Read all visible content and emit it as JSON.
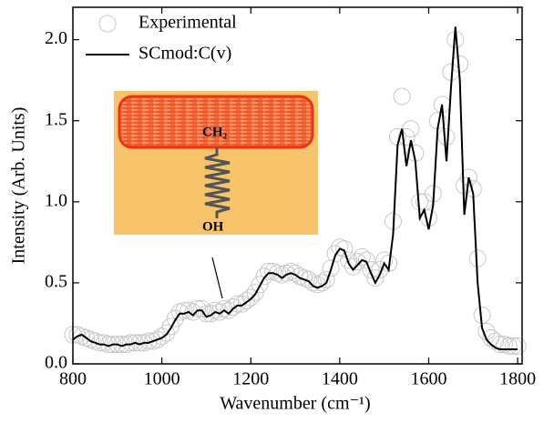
{
  "chart_data": {
    "type": "line",
    "xlabel": "Wavenumber (cm⁻¹)",
    "ylabel": "Intensity (Arb. Units)",
    "xlim": [
      800,
      1810
    ],
    "ylim": [
      0,
      2.2
    ],
    "xticks": [
      800,
      1000,
      1200,
      1400,
      1600,
      1800
    ],
    "yticks": [
      {
        "value": 0,
        "label": "0.0"
      },
      0.5,
      {
        "value": 1,
        "label": "1.0"
      },
      1.5,
      {
        "value": 2,
        "label": "2.0"
      }
    ],
    "legend": "upper left",
    "annotations": [
      "CH₂",
      "OH"
    ],
    "series": [
      {
        "name": "Experimental",
        "style": "markers",
        "color": "#c8c8c8",
        "x": [
          800,
          810,
          820,
          830,
          840,
          850,
          860,
          870,
          880,
          890,
          900,
          910,
          920,
          930,
          940,
          950,
          960,
          970,
          980,
          990,
          1000,
          1010,
          1020,
          1030,
          1040,
          1050,
          1060,
          1070,
          1080,
          1090,
          1100,
          1110,
          1120,
          1130,
          1140,
          1150,
          1160,
          1170,
          1180,
          1190,
          1200,
          1210,
          1220,
          1230,
          1240,
          1250,
          1260,
          1270,
          1280,
          1290,
          1300,
          1310,
          1320,
          1330,
          1340,
          1350,
          1360,
          1370,
          1380,
          1390,
          1400,
          1410,
          1420,
          1430,
          1440,
          1450,
          1460,
          1470,
          1480,
          1490,
          1500,
          1510,
          1520,
          1530,
          1540,
          1550,
          1560,
          1570,
          1580,
          1590,
          1600,
          1610,
          1620,
          1630,
          1640,
          1650,
          1660,
          1670,
          1680,
          1690,
          1700,
          1710,
          1720,
          1730,
          1740,
          1750,
          1760,
          1770,
          1780,
          1790,
          1800
        ],
        "values": [
          0.18,
          0.18,
          0.17,
          0.16,
          0.15,
          0.14,
          0.13,
          0.13,
          0.12,
          0.12,
          0.12,
          0.12,
          0.12,
          0.13,
          0.13,
          0.13,
          0.13,
          0.14,
          0.14,
          0.15,
          0.17,
          0.19,
          0.23,
          0.28,
          0.32,
          0.33,
          0.33,
          0.32,
          0.34,
          0.34,
          0.31,
          0.31,
          0.33,
          0.32,
          0.34,
          0.33,
          0.35,
          0.37,
          0.37,
          0.39,
          0.41,
          0.44,
          0.49,
          0.54,
          0.57,
          0.57,
          0.56,
          0.55,
          0.56,
          0.57,
          0.56,
          0.54,
          0.53,
          0.52,
          0.5,
          0.49,
          0.5,
          0.52,
          0.59,
          0.68,
          0.72,
          0.71,
          0.64,
          0.6,
          0.63,
          0.66,
          0.64,
          0.58,
          0.53,
          0.58,
          0.64,
          0.62,
          0.88,
          1.4,
          1.65,
          1.4,
          1.45,
          1.3,
          1.0,
          1.0,
          0.9,
          1.05,
          1.5,
          1.6,
          1.4,
          1.8,
          2.0,
          1.85,
          1.1,
          1.15,
          1.08,
          0.65,
          0.3,
          0.2,
          0.16,
          0.14,
          0.12,
          0.12,
          0.11,
          0.11,
          0.11
        ]
      },
      {
        "name": "SCmod:C(v)",
        "style": "line",
        "color": "#000000",
        "x": [
          800,
          810,
          820,
          830,
          840,
          850,
          860,
          870,
          880,
          890,
          900,
          910,
          920,
          930,
          940,
          950,
          960,
          970,
          980,
          990,
          1000,
          1010,
          1020,
          1030,
          1040,
          1050,
          1060,
          1070,
          1080,
          1090,
          1100,
          1110,
          1120,
          1130,
          1140,
          1150,
          1160,
          1170,
          1180,
          1190,
          1200,
          1210,
          1220,
          1230,
          1240,
          1250,
          1260,
          1270,
          1280,
          1290,
          1300,
          1310,
          1320,
          1330,
          1340,
          1350,
          1360,
          1370,
          1380,
          1390,
          1400,
          1410,
          1420,
          1430,
          1440,
          1450,
          1460,
          1470,
          1480,
          1490,
          1500,
          1510,
          1520,
          1530,
          1540,
          1550,
          1560,
          1570,
          1580,
          1590,
          1600,
          1610,
          1620,
          1630,
          1640,
          1650,
          1660,
          1670,
          1680,
          1690,
          1700,
          1710,
          1720,
          1730,
          1740,
          1750,
          1760,
          1770,
          1780,
          1790,
          1800
        ],
        "values": [
          0.15,
          0.17,
          0.18,
          0.16,
          0.14,
          0.13,
          0.12,
          0.12,
          0.11,
          0.12,
          0.12,
          0.11,
          0.12,
          0.12,
          0.13,
          0.12,
          0.13,
          0.13,
          0.14,
          0.15,
          0.16,
          0.18,
          0.22,
          0.27,
          0.31,
          0.31,
          0.32,
          0.3,
          0.33,
          0.33,
          0.29,
          0.3,
          0.32,
          0.31,
          0.33,
          0.31,
          0.34,
          0.36,
          0.36,
          0.38,
          0.4,
          0.43,
          0.48,
          0.53,
          0.56,
          0.56,
          0.55,
          0.53,
          0.55,
          0.56,
          0.55,
          0.53,
          0.52,
          0.51,
          0.48,
          0.47,
          0.48,
          0.5,
          0.58,
          0.67,
          0.71,
          0.7,
          0.62,
          0.58,
          0.61,
          0.64,
          0.63,
          0.56,
          0.5,
          0.55,
          0.62,
          0.58,
          0.8,
          1.35,
          1.45,
          1.22,
          1.38,
          1.25,
          0.9,
          0.95,
          0.83,
          0.98,
          1.45,
          1.6,
          1.25,
          1.7,
          2.08,
          1.75,
          0.92,
          1.15,
          1.05,
          0.5,
          0.22,
          0.15,
          0.12,
          0.1,
          0.09,
          0.09,
          0.09,
          0.09,
          0.09
        ]
      }
    ]
  }
}
